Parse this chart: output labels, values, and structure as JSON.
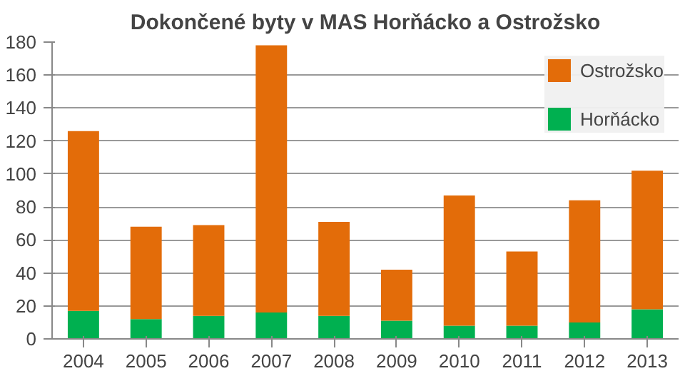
{
  "chart_data": {
    "type": "bar",
    "title": "Dokončené byty v MAS Horňácko a Ostrožsko",
    "categories": [
      "2004",
      "2005",
      "2006",
      "2007",
      "2008",
      "2009",
      "2010",
      "2011",
      "2012",
      "2013"
    ],
    "stacked": true,
    "series": [
      {
        "name": "Horňácko",
        "color": "#00b050",
        "values": [
          17,
          12,
          14,
          16,
          14,
          11,
          8,
          8,
          10,
          18
        ]
      },
      {
        "name": "Ostrožsko",
        "color": "#e36c09",
        "values": [
          109,
          56,
          55,
          162,
          57,
          31,
          79,
          45,
          74,
          84
        ]
      }
    ],
    "ylim": [
      0,
      180
    ],
    "yticks": [
      0,
      20,
      40,
      60,
      80,
      100,
      120,
      140,
      160,
      180
    ],
    "grid": "y",
    "legend": "top right"
  }
}
